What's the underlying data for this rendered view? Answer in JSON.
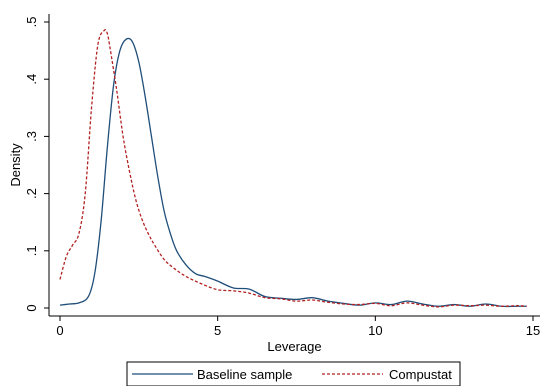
{
  "chart_data": {
    "type": "line",
    "title": "",
    "xlabel": "Leverage",
    "ylabel": "Density",
    "xlim": [
      0,
      15
    ],
    "ylim": [
      0,
      0.5
    ],
    "x_ticks": [
      0,
      5,
      10,
      15
    ],
    "x_tick_labels": [
      "0",
      "5",
      "10",
      "15"
    ],
    "y_ticks": [
      0,
      0.1,
      0.2,
      0.3,
      0.4,
      0.5
    ],
    "y_tick_labels": [
      "0",
      ".1",
      ".2",
      ".3",
      ".4",
      ".5"
    ],
    "grid": false,
    "legend_position": "bottom",
    "series": [
      {
        "name": "Baseline sample",
        "color": "#1f4e79",
        "style": "solid",
        "x": [
          0,
          0.3,
          0.6,
          0.9,
          1.1,
          1.3,
          1.5,
          1.7,
          1.9,
          2.1,
          2.3,
          2.5,
          2.7,
          2.9,
          3.1,
          3.3,
          3.5,
          3.7,
          4.0,
          4.3,
          4.6,
          5.0,
          5.5,
          6.0,
          6.5,
          7.0,
          7.5,
          8.0,
          8.5,
          9.0,
          9.5,
          10.0,
          10.5,
          11.0,
          11.5,
          12.0,
          12.5,
          13.0,
          13.5,
          14.0,
          14.5,
          14.8
        ],
        "y": [
          0.005,
          0.007,
          0.009,
          0.02,
          0.06,
          0.15,
          0.28,
          0.39,
          0.45,
          0.47,
          0.465,
          0.43,
          0.37,
          0.3,
          0.23,
          0.17,
          0.13,
          0.1,
          0.075,
          0.06,
          0.055,
          0.047,
          0.035,
          0.033,
          0.02,
          0.017,
          0.015,
          0.018,
          0.012,
          0.008,
          0.005,
          0.009,
          0.006,
          0.012,
          0.007,
          0.003,
          0.006,
          0.003,
          0.007,
          0.003,
          0.003,
          0.003
        ]
      },
      {
        "name": "Compustat",
        "color": "#b22222",
        "style": "dashed",
        "x": [
          0,
          0.2,
          0.4,
          0.6,
          0.8,
          1.0,
          1.2,
          1.4,
          1.5,
          1.6,
          1.8,
          2.0,
          2.2,
          2.4,
          2.6,
          2.8,
          3.0,
          3.3,
          3.6,
          4.0,
          4.5,
          5.0,
          5.5,
          6.0,
          6.5,
          7.0,
          7.5,
          8.0,
          8.5,
          9.0,
          9.5,
          10.0,
          10.5,
          11.0,
          11.5,
          12.0,
          12.5,
          13.0,
          13.5,
          14.0,
          14.5,
          14.8
        ],
        "y": [
          0.05,
          0.09,
          0.11,
          0.13,
          0.2,
          0.35,
          0.46,
          0.485,
          0.48,
          0.45,
          0.38,
          0.3,
          0.24,
          0.19,
          0.155,
          0.13,
          0.11,
          0.085,
          0.07,
          0.055,
          0.042,
          0.032,
          0.03,
          0.026,
          0.018,
          0.016,
          0.012,
          0.014,
          0.01,
          0.007,
          0.006,
          0.008,
          0.004,
          0.009,
          0.005,
          0.002,
          0.005,
          0.004,
          0.005,
          0.003,
          0.004,
          0.003
        ]
      }
    ]
  }
}
